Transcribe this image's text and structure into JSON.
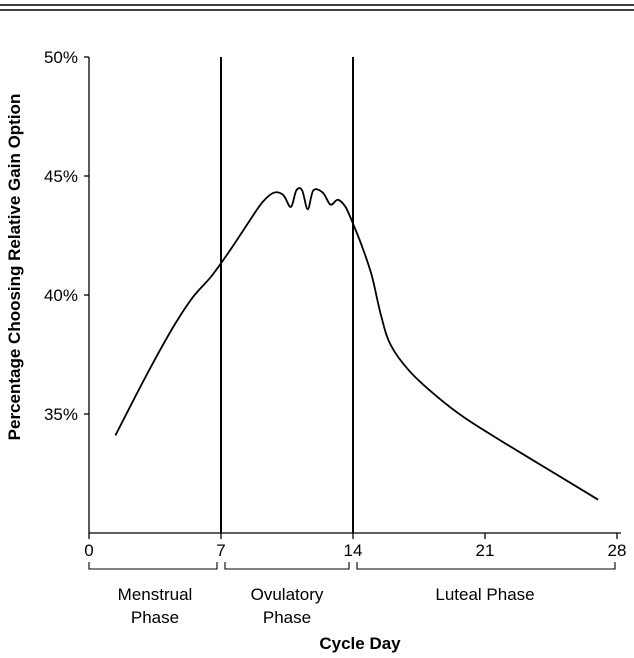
{
  "chart_data": {
    "type": "line",
    "title": "",
    "xlabel": "Cycle Day",
    "ylabel": "Percentage Choosing Relative Gain Option",
    "xlim": [
      0,
      28
    ],
    "ylim": [
      30,
      50
    ],
    "x_ticks": [
      {
        "value": 0,
        "label": "0"
      },
      {
        "value": 7,
        "label": "7"
      },
      {
        "value": 14,
        "label": "14"
      },
      {
        "value": 21,
        "label": "21"
      },
      {
        "value": 28,
        "label": "28"
      }
    ],
    "y_ticks": [
      {
        "value": 50,
        "label": "50%"
      },
      {
        "value": 45,
        "label": "45%"
      },
      {
        "value": 40,
        "label": "40%"
      },
      {
        "value": 35,
        "label": "35%"
      }
    ],
    "phase_boundaries": [
      7,
      14
    ],
    "phases": [
      {
        "line1": "Menstrual",
        "line2": "Phase",
        "start": 0,
        "end": 7
      },
      {
        "line1": "Ovulatory",
        "line2": "Phase",
        "start": 7,
        "end": 14
      },
      {
        "line1": "Luteal Phase",
        "line2": "",
        "start": 14,
        "end": 28
      }
    ],
    "series": [
      {
        "x": [
          1.4,
          2.5,
          3.5,
          4.5,
          5.5,
          6.5,
          7.5,
          8.5,
          9.2,
          9.8,
          10.3,
          10.7,
          11.0,
          11.3,
          11.6,
          11.9,
          12.4,
          12.8,
          13.2,
          13.6,
          14.0,
          14.5,
          15.0,
          15.5,
          16.0,
          17.0,
          18.5,
          20.0,
          22.0,
          24.5,
          27.0
        ],
        "y": [
          34.1,
          35.8,
          37.3,
          38.7,
          39.9,
          40.8,
          41.9,
          43.1,
          43.9,
          44.3,
          44.2,
          43.7,
          44.4,
          44.4,
          43.6,
          44.4,
          44.3,
          43.8,
          44.0,
          43.7,
          43.0,
          42.0,
          40.8,
          39.1,
          37.9,
          36.8,
          35.7,
          34.8,
          33.8,
          32.6,
          31.4
        ]
      }
    ],
    "colors": {
      "line": "#000000",
      "background": "#ffffff"
    }
  }
}
